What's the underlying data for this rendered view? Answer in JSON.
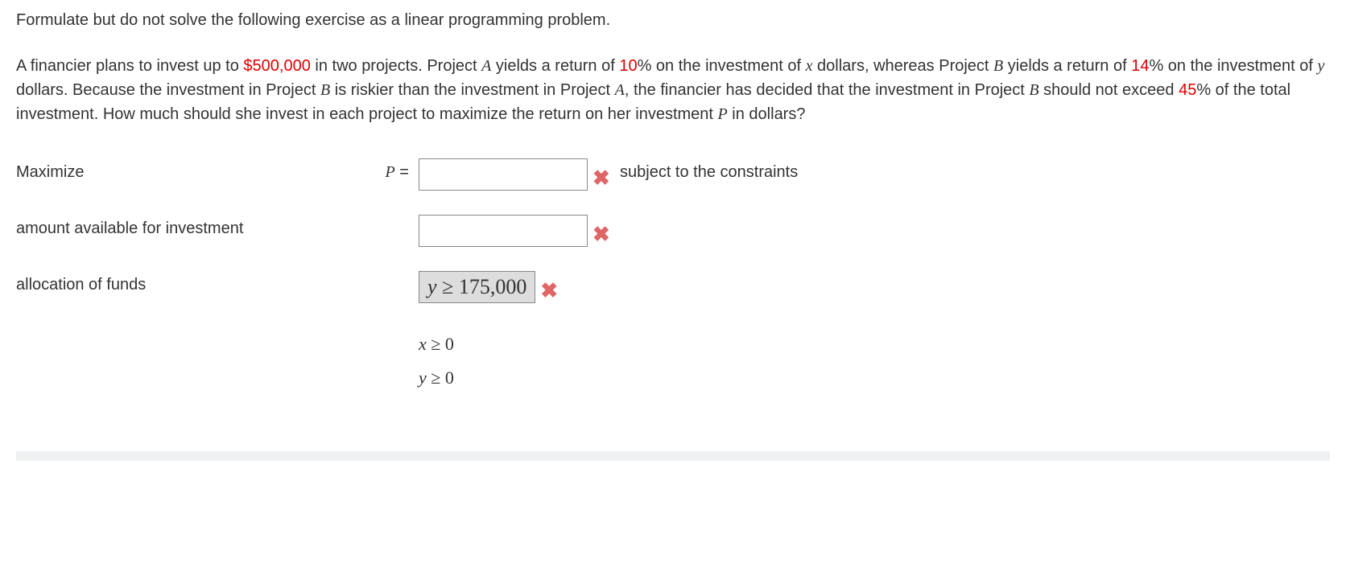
{
  "instruction": "Formulate but do not solve the following exercise as a linear programming problem.",
  "problem": {
    "p1": "A financier plans to invest up to ",
    "amt_total": "$500,000",
    "p2": " in two projects. Project ",
    "projA1": "A",
    "p3": " yields a return of ",
    "pctA": "10",
    "p4": "% on the investment of ",
    "x1": "x",
    "p5": " dollars, whereas Project ",
    "projB1": "B",
    "p6": " yields a return of ",
    "pctB": "14",
    "p7": "% on the investment of ",
    "y1": "y",
    "p8": " dollars. Because the investment in Project ",
    "projB2": "B",
    "p9": " is riskier than the investment in Project ",
    "projA2": "A",
    "p10": ", the financier has decided that the investment in Project ",
    "projB3": "B",
    "p11": " should not exceed ",
    "pctCap": "45",
    "p12": "% of the total investment. How much should she invest in each project to maximize the return on her investment ",
    "Pvar": "P",
    "p13": " in dollars?"
  },
  "rows": {
    "maximize": {
      "label": "Maximize",
      "eq_lhs": "P",
      "eq_sym": " = ",
      "after": "subject to the constraints"
    },
    "amount": {
      "label": "amount available for investment"
    },
    "allocation": {
      "label": "allocation of funds",
      "filled_y": "y",
      "filled_op": " ≥ 175,000"
    }
  },
  "nonneg": {
    "line1_var": "x",
    "line1_rest": " ≥ 0",
    "line2_var": "y",
    "line2_rest": " ≥ 0"
  },
  "marks": {
    "wrong": "✖"
  }
}
